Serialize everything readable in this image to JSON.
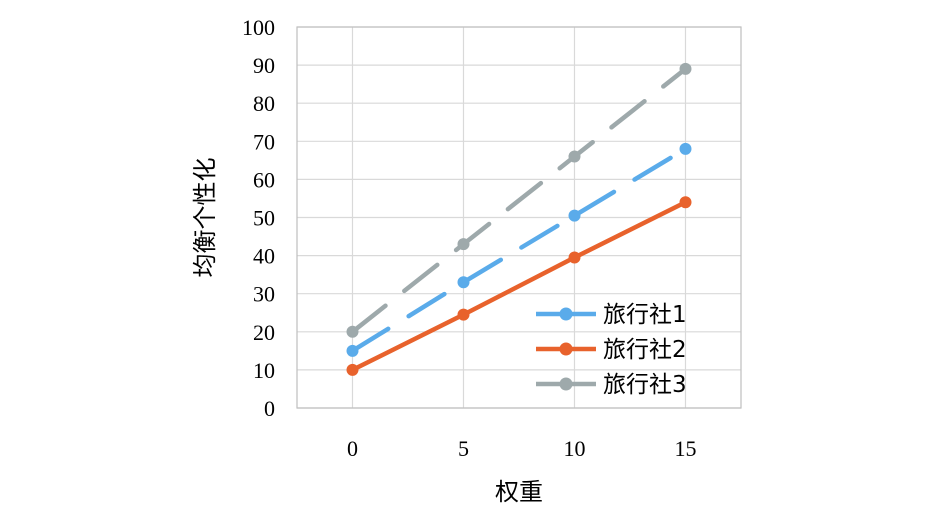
{
  "chart_data": {
    "type": "line",
    "xlabel": "权重",
    "ylabel": "均衡个性化",
    "xlim": [
      -2.5,
      17.5
    ],
    "ylim": [
      0,
      100
    ],
    "x_ticks": [
      "0",
      "5",
      "10",
      "15"
    ],
    "y_ticks": [
      "0",
      "10",
      "20",
      "30",
      "40",
      "50",
      "60",
      "70",
      "80",
      "90",
      "100"
    ],
    "grid": true,
    "legend_position": "bottom-right",
    "x": [
      0,
      5,
      10,
      15
    ],
    "series": [
      {
        "name": "旅行社1",
        "values": [
          15,
          33,
          50.5,
          68
        ],
        "color": "#5aabea",
        "style": "dashed"
      },
      {
        "name": "旅行社2",
        "values": [
          10,
          24.5,
          39.5,
          54
        ],
        "color": "#e8622c",
        "style": "solid"
      },
      {
        "name": "旅行社3",
        "values": [
          20,
          43,
          66,
          89
        ],
        "color": "#9ea9ab",
        "style": "dashed"
      }
    ]
  }
}
